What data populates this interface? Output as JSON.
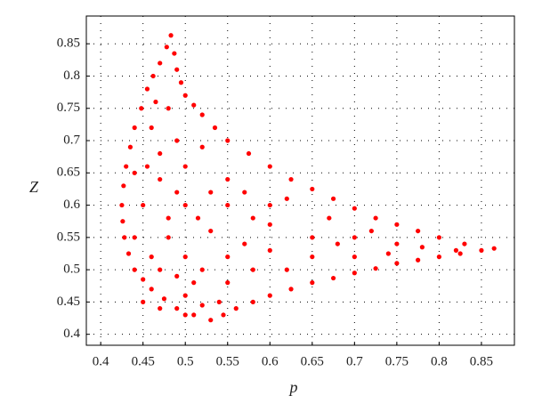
{
  "chart_data": {
    "type": "scatter",
    "x_label": "p",
    "y_label": "Z",
    "color": "#ff0000",
    "x": [
      0.483,
      0.478,
      0.47,
      0.462,
      0.455,
      0.448,
      0.44,
      0.435,
      0.43,
      0.427,
      0.425,
      0.426,
      0.428,
      0.433,
      0.44,
      0.45,
      0.46,
      0.475,
      0.49,
      0.51,
      0.53,
      0.487,
      0.49,
      0.495,
      0.5,
      0.51,
      0.52,
      0.535,
      0.55,
      0.575,
      0.6,
      0.625,
      0.65,
      0.675,
      0.7,
      0.725,
      0.75,
      0.775,
      0.8,
      0.83,
      0.865,
      0.545,
      0.56,
      0.58,
      0.6,
      0.625,
      0.65,
      0.675,
      0.7,
      0.725,
      0.75,
      0.775,
      0.8,
      0.825,
      0.85,
      0.48,
      0.49,
      0.5,
      0.47,
      0.45,
      0.5,
      0.55,
      0.6,
      0.65,
      0.7,
      0.75,
      0.5,
      0.55,
      0.6,
      0.65,
      0.7,
      0.55,
      0.5,
      0.47,
      0.52,
      0.58,
      0.62,
      0.48,
      0.53,
      0.58,
      0.62,
      0.55,
      0.52,
      0.46,
      0.44,
      0.49,
      0.44,
      0.5,
      0.54,
      0.51,
      0.46,
      0.48,
      0.6,
      0.67,
      0.72,
      0.78,
      0.82,
      0.465,
      0.47,
      0.455,
      0.53,
      0.57,
      0.515,
      0.45,
      0.47,
      0.68,
      0.74,
      0.57,
      0.52,
      0.49
    ],
    "values": [
      0.863,
      0.845,
      0.82,
      0.8,
      0.78,
      0.75,
      0.72,
      0.69,
      0.66,
      0.63,
      0.6,
      0.575,
      0.55,
      0.525,
      0.5,
      0.485,
      0.47,
      0.455,
      0.44,
      0.43,
      0.422,
      0.835,
      0.81,
      0.79,
      0.77,
      0.755,
      0.74,
      0.72,
      0.7,
      0.68,
      0.66,
      0.64,
      0.625,
      0.61,
      0.595,
      0.58,
      0.57,
      0.56,
      0.55,
      0.54,
      0.533,
      0.43,
      0.44,
      0.45,
      0.46,
      0.47,
      0.48,
      0.487,
      0.495,
      0.502,
      0.51,
      0.515,
      0.52,
      0.525,
      0.53,
      0.75,
      0.7,
      0.66,
      0.68,
      0.6,
      0.6,
      0.6,
      0.57,
      0.55,
      0.55,
      0.54,
      0.52,
      0.52,
      0.53,
      0.52,
      0.52,
      0.48,
      0.46,
      0.5,
      0.5,
      0.5,
      0.5,
      0.55,
      0.56,
      0.58,
      0.61,
      0.64,
      0.69,
      0.72,
      0.65,
      0.62,
      0.55,
      0.43,
      0.45,
      0.48,
      0.52,
      0.58,
      0.6,
      0.58,
      0.56,
      0.535,
      0.53,
      0.76,
      0.64,
      0.66,
      0.62,
      0.62,
      0.58,
      0.45,
      0.44,
      0.54,
      0.525,
      0.54,
      0.445,
      0.49
    ],
    "xlim": [
      0.383,
      0.889
    ],
    "ylim": [
      0.383,
      0.893
    ],
    "xticks": [
      0.4,
      0.45,
      0.5,
      0.55,
      0.6,
      0.65,
      0.7,
      0.75,
      0.8,
      0.85
    ],
    "yticks": [
      0.4,
      0.45,
      0.5,
      0.55,
      0.6,
      0.65,
      0.7,
      0.75,
      0.8,
      0.85
    ],
    "grid": true
  }
}
